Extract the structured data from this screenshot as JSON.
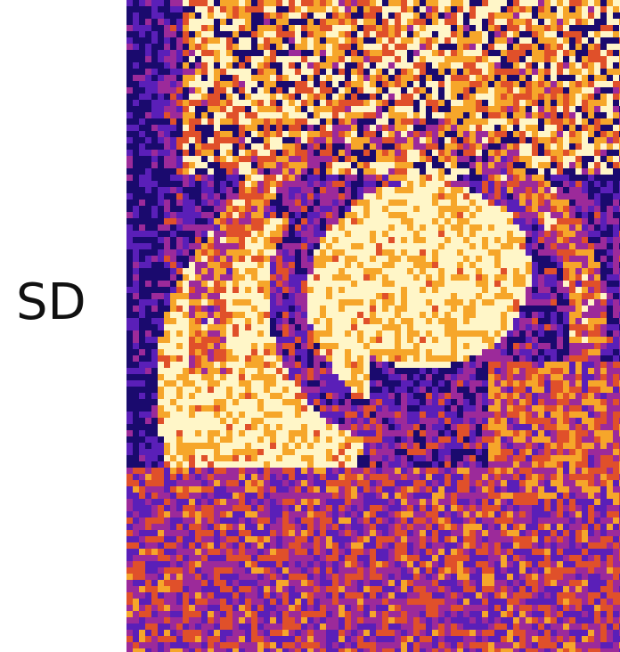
{
  "row_label": "SD",
  "colormap": {
    "low": "#1a0a6e",
    "mid_low": "#5a1fb8",
    "mid": "#9c2a9a",
    "mid_high": "#e0502a",
    "high": "#f6a62a",
    "peak": "#fff6c8"
  }
}
